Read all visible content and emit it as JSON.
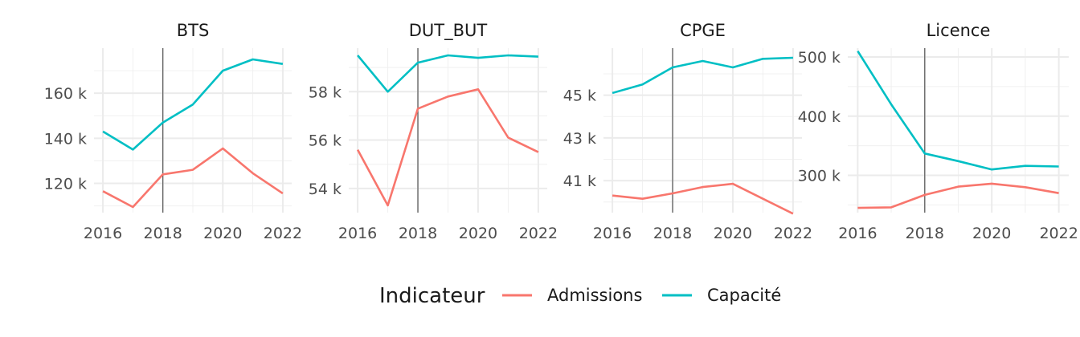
{
  "chart_data": {
    "type": "line",
    "x": [
      2016,
      2017,
      2018,
      2019,
      2020,
      2021,
      2022
    ],
    "x_ticks": [
      2016,
      2018,
      2020,
      2022
    ],
    "vline_x": 2018,
    "grid": true,
    "legend": {
      "title": "Indicateur",
      "placement": "bottom",
      "entries": [
        {
          "label": "Admissions",
          "color": "#F8766D"
        },
        {
          "label": "Capacité",
          "color": "#00BFC4"
        }
      ]
    },
    "panels": [
      {
        "title": "BTS",
        "ylim": [
          107000,
          180000
        ],
        "y_ticks": [
          120000,
          140000,
          160000
        ],
        "y_tick_labels": [
          "120 k",
          "140 k",
          "160 k"
        ],
        "series": [
          {
            "name": "Admissions",
            "values": [
              116500,
              109500,
              124000,
              126000,
              135500,
              124500,
              115500
            ]
          },
          {
            "name": "Capacité",
            "values": [
              143000,
              135000,
              147000,
              155000,
              170000,
              175000,
              173000
            ]
          }
        ]
      },
      {
        "title": "DUT_BUT",
        "ylim": [
          53000,
          59800
        ],
        "y_ticks": [
          54000,
          56000,
          58000
        ],
        "y_tick_labels": [
          "54 k",
          "56 k",
          "58 k"
        ],
        "series": [
          {
            "name": "Admissions",
            "values": [
              55600,
              53300,
              57300,
              57800,
              58100,
              56100,
              55500
            ]
          },
          {
            "name": "Capacité",
            "values": [
              59500,
              58000,
              59200,
              59500,
              59400,
              59500,
              59450
            ]
          }
        ]
      },
      {
        "title": "CPGE",
        "ylim": [
          39500,
          47200
        ],
        "y_ticks": [
          41000,
          43000,
          45000
        ],
        "y_tick_labels": [
          "41 k",
          "43 k",
          "45 k"
        ],
        "series": [
          {
            "name": "Admissions",
            "values": [
              40300,
              40150,
              40400,
              40700,
              40850,
              40150,
              39450
            ]
          },
          {
            "name": "Capacité",
            "values": [
              45100,
              45500,
              46300,
              46600,
              46300,
              46700,
              46750
            ]
          }
        ]
      },
      {
        "title": "Licence",
        "ylim": [
          237000,
          515000
        ],
        "y_ticks": [
          300000,
          400000,
          500000
        ],
        "y_tick_labels": [
          "300 k",
          "400 k",
          "500 k"
        ],
        "series": [
          {
            "name": "Admissions",
            "values": [
              245000,
              246000,
              267000,
              281000,
              286000,
              280000,
              270000
            ]
          },
          {
            "name": "Capacité",
            "values": [
              510000,
              420000,
              337000,
              324000,
              310000,
              316000,
              315000
            ]
          }
        ]
      }
    ]
  }
}
